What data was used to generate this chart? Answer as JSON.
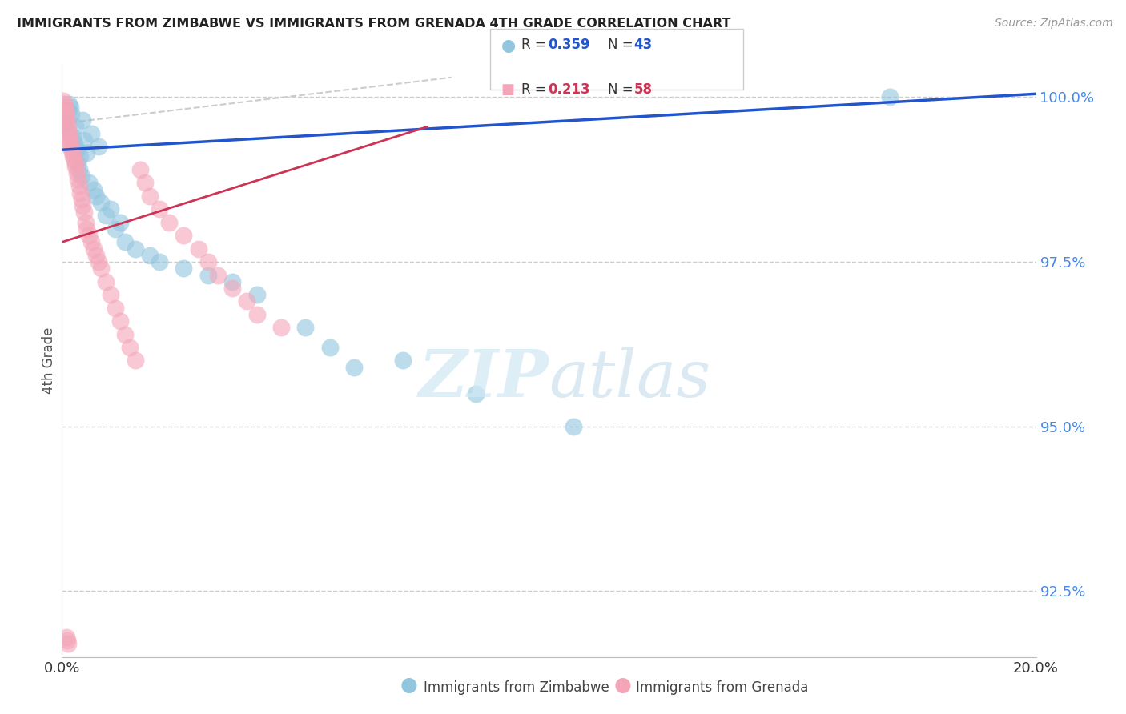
{
  "title": "IMMIGRANTS FROM ZIMBABWE VS IMMIGRANTS FROM GRENADA 4TH GRADE CORRELATION CHART",
  "source": "Source: ZipAtlas.com",
  "ylabel": "4th Grade",
  "xlim": [
    0.0,
    20.0
  ],
  "ylim": [
    91.5,
    100.5
  ],
  "yticks": [
    92.5,
    95.0,
    97.5,
    100.0
  ],
  "ytick_labels": [
    "92.5%",
    "95.0%",
    "97.5%",
    "100.0%"
  ],
  "xtick_left": "0.0%",
  "xtick_right": "20.0%",
  "legend_r1": "R = 0.359",
  "legend_n1": "N = 43",
  "legend_r2": "R = 0.213",
  "legend_n2": "N = 58",
  "color_blue": "#92C5DE",
  "color_pink": "#F4A6B8",
  "color_line_blue": "#2255CC",
  "color_line_pink": "#CC3355",
  "color_diag": "#CCCCCC",
  "color_grid": "#CCCCCC",
  "color_title": "#222222",
  "color_source": "#999999",
  "color_ytick": "#4488EE",
  "watermark_color": "#D0E8F5",
  "zimbabwe_x": [
    0.05,
    0.08,
    0.1,
    0.12,
    0.15,
    0.18,
    0.2,
    0.22,
    0.25,
    0.28,
    0.3,
    0.32,
    0.35,
    0.38,
    0.4,
    0.42,
    0.45,
    0.5,
    0.55,
    0.6,
    0.65,
    0.7,
    0.75,
    0.8,
    0.9,
    1.0,
    1.1,
    1.2,
    1.3,
    1.5,
    1.8,
    2.0,
    2.5,
    3.0,
    3.5,
    4.0,
    5.0,
    5.5,
    6.0,
    7.0,
    8.5,
    10.5,
    17.0
  ],
  "zimbabwe_y": [
    99.6,
    99.7,
    99.5,
    99.8,
    99.9,
    99.85,
    99.75,
    99.4,
    99.3,
    99.55,
    99.2,
    99.0,
    98.9,
    99.1,
    98.8,
    99.65,
    99.35,
    99.15,
    98.7,
    99.45,
    98.6,
    98.5,
    99.25,
    98.4,
    98.2,
    98.3,
    98.0,
    98.1,
    97.8,
    97.7,
    97.6,
    97.5,
    97.4,
    97.3,
    97.2,
    97.0,
    96.5,
    96.2,
    95.9,
    96.0,
    95.5,
    95.0,
    100.0
  ],
  "grenada_x": [
    0.03,
    0.05,
    0.06,
    0.07,
    0.08,
    0.09,
    0.1,
    0.12,
    0.13,
    0.14,
    0.15,
    0.16,
    0.17,
    0.18,
    0.2,
    0.22,
    0.23,
    0.25,
    0.27,
    0.28,
    0.3,
    0.32,
    0.35,
    0.38,
    0.4,
    0.42,
    0.45,
    0.48,
    0.5,
    0.55,
    0.6,
    0.65,
    0.7,
    0.75,
    0.8,
    0.9,
    1.0,
    1.1,
    1.2,
    1.3,
    1.4,
    1.5,
    1.6,
    1.7,
    1.8,
    2.0,
    2.2,
    2.5,
    2.8,
    3.0,
    3.2,
    3.5,
    3.8,
    4.0,
    4.5,
    0.1,
    0.11,
    0.13
  ],
  "grenada_y": [
    99.95,
    99.9,
    99.85,
    99.8,
    99.75,
    99.7,
    99.65,
    99.55,
    99.5,
    99.45,
    99.4,
    99.35,
    99.3,
    99.25,
    99.2,
    99.15,
    99.1,
    99.05,
    99.0,
    98.95,
    98.85,
    98.75,
    98.65,
    98.55,
    98.45,
    98.35,
    98.25,
    98.1,
    98.0,
    97.9,
    97.8,
    97.7,
    97.6,
    97.5,
    97.4,
    97.2,
    97.0,
    96.8,
    96.6,
    96.4,
    96.2,
    96.0,
    98.9,
    98.7,
    98.5,
    98.3,
    98.1,
    97.9,
    97.7,
    97.5,
    97.3,
    97.1,
    96.9,
    96.7,
    96.5,
    91.8,
    91.75,
    91.7
  ],
  "blue_line_x": [
    0.0,
    20.0
  ],
  "blue_line_y": [
    99.2,
    100.05
  ],
  "pink_line_x": [
    0.0,
    7.5
  ],
  "pink_line_y": [
    97.8,
    99.55
  ],
  "diag_line_x": [
    0.0,
    8.0
  ],
  "diag_line_y": [
    99.6,
    100.3
  ]
}
